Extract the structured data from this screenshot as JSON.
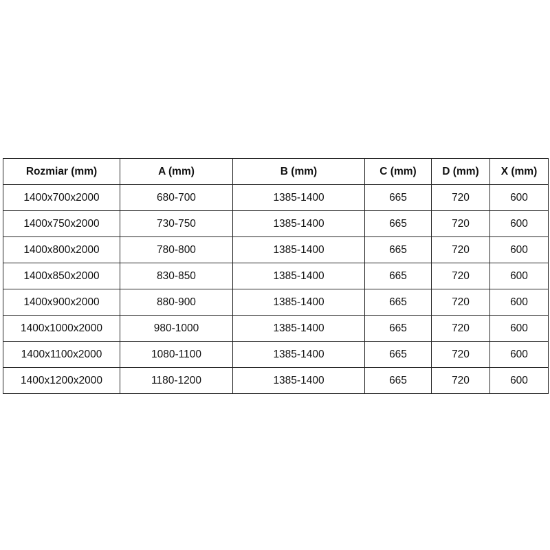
{
  "table": {
    "headers": [
      "Rozmiar (mm)",
      "A (mm)",
      "B (mm)",
      "C (mm)",
      "D (mm)",
      "X (mm)"
    ],
    "rows": [
      [
        "1400x700x2000",
        "680-700",
        "1385-1400",
        "665",
        "720",
        "600"
      ],
      [
        "1400x750x2000",
        "730-750",
        "1385-1400",
        "665",
        "720",
        "600"
      ],
      [
        "1400x800x2000",
        "780-800",
        "1385-1400",
        "665",
        "720",
        "600"
      ],
      [
        "1400x850x2000",
        "830-850",
        "1385-1400",
        "665",
        "720",
        "600"
      ],
      [
        "1400x900x2000",
        "880-900",
        "1385-1400",
        "665",
        "720",
        "600"
      ],
      [
        "1400x1000x2000",
        "980-1000",
        "1385-1400",
        "665",
        "720",
        "600"
      ],
      [
        "1400x1100x2000",
        "1080-1100",
        "1385-1400",
        "665",
        "720",
        "600"
      ],
      [
        "1400x1200x2000",
        "1180-1200",
        "1385-1400",
        "665",
        "720",
        "600"
      ]
    ]
  }
}
